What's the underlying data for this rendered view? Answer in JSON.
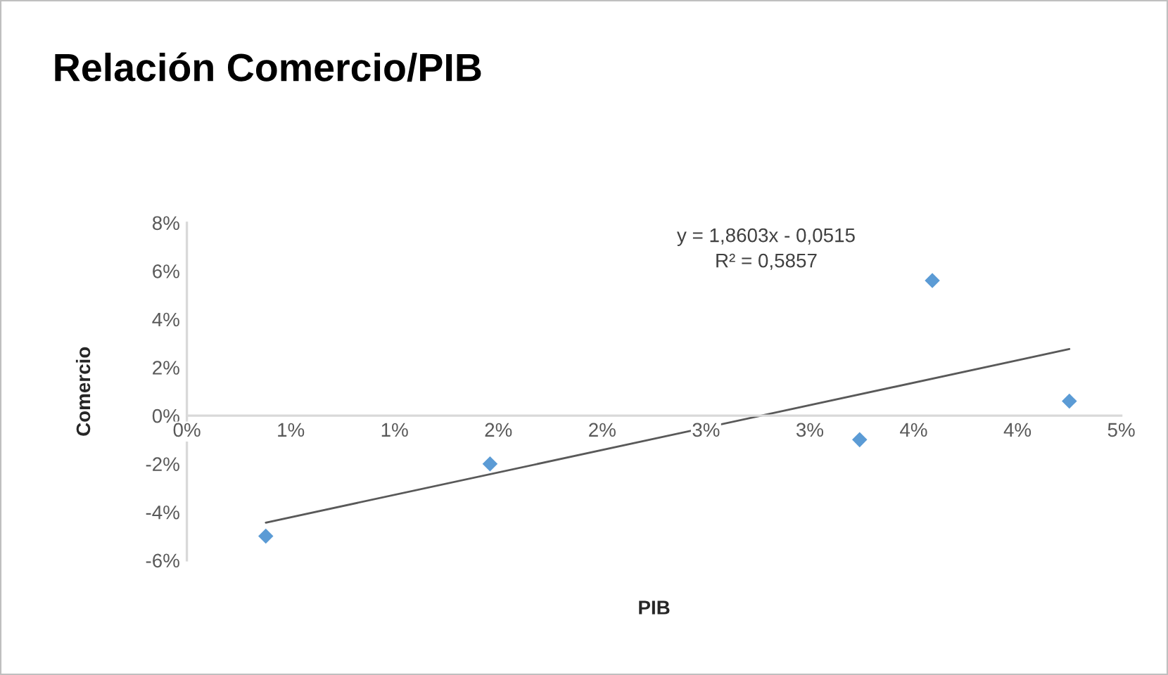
{
  "chart_data": {
    "type": "scatter",
    "title": "Relación Comercio/PIB",
    "xlabel": "PIB",
    "ylabel": "Comercio",
    "annotations": [
      "y = 1,8603x - 0,0515",
      "R² = 0,5857"
    ],
    "series": [
      {
        "color": "#5b9bd5",
        "marker": "diamond",
        "x": [
          0.38,
          1.46,
          3.24,
          3.59,
          4.25
        ],
        "values": [
          -5.0,
          -2.0,
          -1.0,
          5.6,
          0.6
        ]
      },
      {
        "type": "line",
        "color": "#595959",
        "line_style": "solid",
        "x": [
          0.38,
          4.25
        ],
        "values": [
          -4.44,
          2.76
        ]
      }
    ],
    "xlim": [
      0,
      4.5
    ],
    "ylim": [
      -6,
      8
    ],
    "xticks": [
      {
        "value": 0,
        "label": "0%"
      },
      {
        "value": 0.5,
        "label": "1%"
      },
      {
        "value": 1.0,
        "label": "1%"
      },
      {
        "value": 1.5,
        "label": "2%"
      },
      {
        "value": 2.0,
        "label": "2%"
      },
      {
        "value": 2.5,
        "label": "3%"
      },
      {
        "value": 3.0,
        "label": "3%"
      },
      {
        "value": 3.5,
        "label": "4%"
      },
      {
        "value": 4.0,
        "label": "4%"
      },
      {
        "value": 4.5,
        "label": "5%"
      }
    ],
    "yticks": [
      {
        "value": -6,
        "label": "-6%"
      },
      {
        "value": -4,
        "label": "-4%"
      },
      {
        "value": -2,
        "label": "-2%"
      },
      {
        "value": 0,
        "label": "0%"
      },
      {
        "value": 2,
        "label": "2%"
      },
      {
        "value": 4,
        "label": "4%"
      },
      {
        "value": 6,
        "label": "6%"
      },
      {
        "value": 8,
        "label": "8%"
      }
    ],
    "grid": false,
    "legend": false
  }
}
